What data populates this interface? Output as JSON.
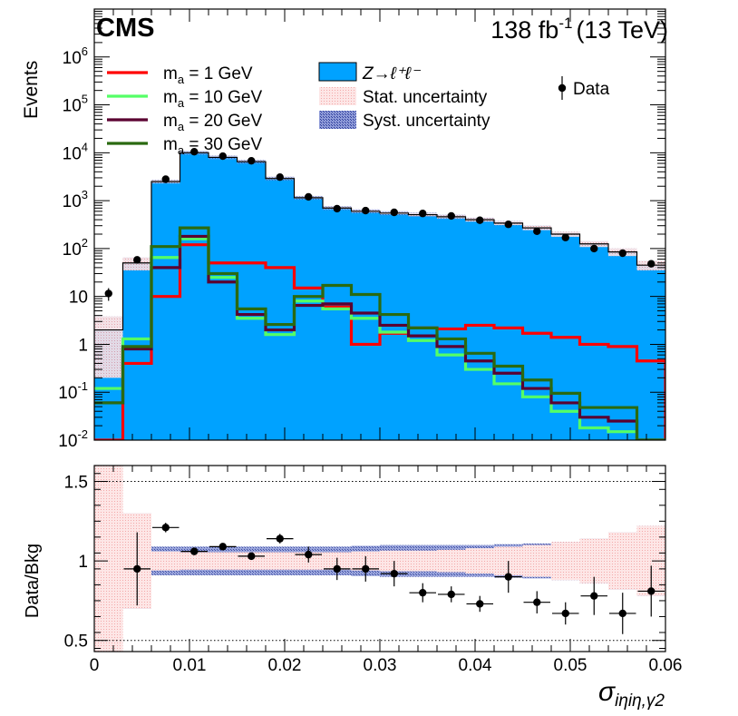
{
  "header": {
    "experiment": "CMS",
    "lumi": "138 fb",
    "lumi_exp": "-1",
    "energy": "(13 TeV)"
  },
  "colors": {
    "background_fill": "#00a2ff",
    "stat_band": "#fbd8d8",
    "syst_band": "#4a5bb0",
    "signal_1": "#ff0000",
    "signal_10": "#55ff66",
    "signal_20": "#5a0030",
    "signal_30": "#2a6a10",
    "data": "#000000"
  },
  "chart_data": {
    "type": "histogram",
    "title": "",
    "xlabel": "σ",
    "xlabel_sub": "iηiη,γ2",
    "ylabel": "Events",
    "ratio_ylabel": "Data/Bkg",
    "xlim": [
      0,
      0.06
    ],
    "ylim_log": [
      0.01,
      10000000
    ],
    "ratio_ylim": [
      0.43,
      1.6
    ],
    "x_ticks": [
      "0",
      "0.01",
      "0.02",
      "0.03",
      "0.04",
      "0.05",
      "0.06"
    ],
    "y_ticks": [
      {
        "base": "10",
        "exp": "-2",
        "value": 0.01
      },
      {
        "base": "10",
        "exp": "-1",
        "value": 0.1
      },
      {
        "base": "1",
        "exp": "",
        "value": 1
      },
      {
        "base": "10",
        "exp": "",
        "value": 10
      },
      {
        "base": "10",
        "exp": "2",
        "value": 100
      },
      {
        "base": "10",
        "exp": "3",
        "value": 1000
      },
      {
        "base": "10",
        "exp": "4",
        "value": 10000
      },
      {
        "base": "10",
        "exp": "5",
        "value": 100000
      },
      {
        "base": "10",
        "exp": "6",
        "value": 1000000
      }
    ],
    "ratio_ticks": [
      "0.5",
      "1",
      "1.5"
    ],
    "ratio_tick_values": [
      0.5,
      1.0,
      1.5
    ],
    "bin_edges": [
      0,
      0.003,
      0.006,
      0.009,
      0.012,
      0.015,
      0.018,
      0.021,
      0.024,
      0.027,
      0.03,
      0.033,
      0.036,
      0.039,
      0.042,
      0.045,
      0.048,
      0.051,
      0.054,
      0.057,
      0.06
    ],
    "background": {
      "name": "Z→ℓ⁺ℓ⁻",
      "values": [
        2.0,
        50,
        2500,
        10000,
        8000,
        6500,
        2900,
        1150,
        700,
        600,
        550,
        510,
        460,
        400,
        340,
        270,
        200,
        125,
        85,
        45
      ]
    },
    "stat_uncertainty_label": "Stat. uncertainty",
    "syst_uncertainty_label": "Syst. uncertainty",
    "data": {
      "name": "Data",
      "values": [
        11.5,
        58,
        2800,
        10500,
        8500,
        6800,
        3100,
        1200,
        680,
        620,
        570,
        540,
        480,
        390,
        320,
        230,
        170,
        100,
        80,
        48
      ]
    },
    "signals": [
      {
        "name": "m",
        "sub": "a",
        "label": " = 1 GeV",
        "color_key": "signal_1",
        "values": [
          0.01,
          0.4,
          10,
          120,
          50,
          50,
          40,
          15,
          6,
          1,
          1.7,
          2.2,
          2.1,
          2.5,
          2.2,
          1.7,
          1.4,
          1.0,
          0.9,
          0.45
        ]
      },
      {
        "name": "m",
        "sub": "a",
        "label": " = 10 GeV",
        "color_key": "signal_10",
        "values": [
          0.12,
          1.3,
          65,
          160,
          25,
          3.5,
          1.6,
          8,
          5.5,
          3.5,
          1.8,
          1.2,
          0.6,
          0.3,
          0.15,
          0.08,
          0.04,
          0.018,
          0.015,
          0.01
        ]
      },
      {
        "name": "m",
        "sub": "a",
        "label": " = 20 GeV",
        "color_key": "signal_20",
        "values": [
          0.06,
          0.8,
          40,
          180,
          20,
          4.2,
          2.0,
          6.5,
          7,
          4.5,
          2.5,
          1.5,
          0.9,
          0.45,
          0.25,
          0.12,
          0.06,
          0.03,
          0.025,
          0.01
        ]
      },
      {
        "name": "m",
        "sub": "a",
        "label": " = 30 GeV",
        "color_key": "signal_30",
        "values": [
          0.06,
          0.9,
          110,
          270,
          30,
          5.5,
          2.6,
          10,
          17,
          11,
          4.2,
          2.2,
          1.3,
          0.65,
          0.35,
          0.18,
          0.095,
          0.048,
          0.048,
          0.01
        ]
      }
    ],
    "ratio_points": [
      null,
      0.95,
      1.21,
      1.06,
      1.09,
      1.03,
      1.14,
      1.04,
      0.95,
      0.95,
      0.92,
      0.8,
      0.79,
      0.73,
      0.9,
      0.74,
      0.67,
      0.78,
      0.67,
      0.81
    ],
    "ratio_errors": [
      0,
      0.23,
      0.03,
      0.02,
      0.02,
      0.02,
      0.03,
      0.05,
      0.07,
      0.08,
      0.08,
      0.06,
      0.05,
      0.05,
      0.1,
      0.07,
      0.07,
      0.12,
      0.13,
      0.16
    ],
    "ratio_stat": [
      0.9,
      0.3,
      0.06,
      0.02,
      0.02,
      0.02,
      0.03,
      0.035,
      0.04,
      0.045,
      0.05,
      0.06,
      0.07,
      0.08,
      0.09,
      0.1,
      0.12,
      0.14,
      0.18,
      0.22
    ],
    "ratio_syst": [
      0.9,
      0.3,
      0.09,
      0.09,
      0.09,
      0.09,
      0.09,
      0.09,
      0.09,
      0.095,
      0.1,
      0.1,
      0.1,
      0.1,
      0.105,
      0.11,
      0.12,
      0.14,
      0.18,
      0.22
    ]
  }
}
